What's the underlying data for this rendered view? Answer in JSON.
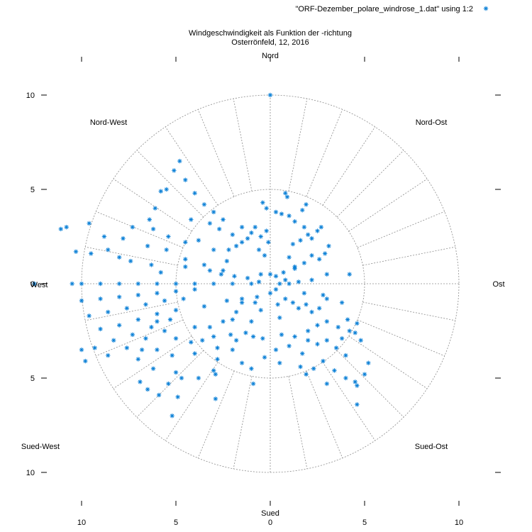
{
  "chart_data": {
    "type": "scatter",
    "projection": "polar",
    "title": "Windgeschwindigkeit als Funktion der -richtung",
    "subtitle": "Osterrönfeld, 12, 2016",
    "legend": {
      "label": "\"ORF-Dezember_polare_windrose_1.dat\" using 1:2",
      "position": "top-right",
      "marker": "*"
    },
    "colors": {
      "series": "#0a7fd6",
      "grid": "#8c8c8c",
      "border": "#000000"
    },
    "direction_labels": {
      "n": "Nord",
      "ne": "Nord-Ost",
      "e": "Ost",
      "se": "Sued-Ost",
      "s": "Sued",
      "sw": "Sued-West",
      "w": "West",
      "nw": "Nord-West"
    },
    "r_range": [
      0,
      10
    ],
    "r_grid": [
      5,
      10
    ],
    "angular_grid_step_deg": 11.25,
    "x_ticks": [
      {
        "value": -10,
        "label": "10"
      },
      {
        "value": -5,
        "label": "5"
      },
      {
        "value": 0,
        "label": "0"
      },
      {
        "value": 5,
        "label": "5"
      },
      {
        "value": 10,
        "label": "10"
      }
    ],
    "y_ticks": [
      {
        "value": 10,
        "label": "10"
      },
      {
        "value": 5,
        "label": "5"
      },
      {
        "value": 0,
        "label": "0"
      },
      {
        "value": -5,
        "label": "5"
      },
      {
        "value": -10,
        "label": "10"
      }
    ],
    "series": [
      {
        "name": "\"ORF-Dezember_polare_windrose_1.dat\" using 1:2",
        "points": [
          [
            0.0,
            10.0
          ],
          [
            0.8,
            4.8
          ],
          [
            0.9,
            4.6
          ],
          [
            -0.4,
            4.3
          ],
          [
            -0.2,
            4.0
          ],
          [
            0.3,
            3.8
          ],
          [
            0.6,
            3.7
          ],
          [
            1.0,
            3.6
          ],
          [
            1.9,
            4.2
          ],
          [
            1.7,
            3.9
          ],
          [
            1.3,
            3.3
          ],
          [
            1.8,
            3.0
          ],
          [
            2.0,
            2.6
          ],
          [
            2.2,
            2.4
          ],
          [
            1.6,
            2.3
          ],
          [
            1.2,
            2.1
          ],
          [
            2.7,
            3.0
          ],
          [
            3.1,
            2.0
          ],
          [
            2.9,
            1.6
          ],
          [
            2.6,
            1.3
          ],
          [
            1.8,
            1.1
          ],
          [
            1.3,
            0.8
          ],
          [
            0.7,
            0.6
          ],
          [
            2.2,
            1.5
          ],
          [
            1.0,
            1.4
          ],
          [
            3.0,
            0.5
          ],
          [
            2.2,
            0.2
          ],
          [
            1.5,
            0.1
          ],
          [
            0.8,
            0.2
          ],
          [
            0.3,
            0.4
          ],
          [
            -0.2,
            2.8
          ],
          [
            -0.5,
            2.5
          ],
          [
            -0.1,
            2.2
          ],
          [
            -0.6,
            1.8
          ],
          [
            -0.3,
            1.5
          ],
          [
            -1.0,
            2.7
          ],
          [
            -1.2,
            2.4
          ],
          [
            -1.5,
            2.2
          ],
          [
            -1.8,
            2.0
          ],
          [
            -2.2,
            1.8
          ],
          [
            -2.0,
            2.6
          ],
          [
            -2.7,
            2.9
          ],
          [
            -3.0,
            3.8
          ],
          [
            -3.5,
            4.2
          ],
          [
            -4.0,
            4.8
          ],
          [
            -4.5,
            5.5
          ],
          [
            -4.8,
            6.5
          ],
          [
            -5.1,
            6.0
          ],
          [
            -5.5,
            5.0
          ],
          [
            -6.1,
            4.0
          ],
          [
            -5.8,
            4.9
          ],
          [
            -6.4,
            3.4
          ],
          [
            -7.3,
            3.0
          ],
          [
            -7.8,
            2.4
          ],
          [
            -8.8,
            2.5
          ],
          [
            -9.6,
            3.2
          ],
          [
            -10.8,
            3.0
          ],
          [
            -11.1,
            2.9
          ],
          [
            -10.3,
            1.7
          ],
          [
            -9.5,
            1.6
          ],
          [
            -8.6,
            1.8
          ],
          [
            -8.0,
            1.4
          ],
          [
            -7.4,
            1.2
          ],
          [
            -6.3,
            1.0
          ],
          [
            -5.8,
            0.6
          ],
          [
            -4.5,
            0.9
          ],
          [
            -3.2,
            0.7
          ],
          [
            -2.6,
            0.5
          ],
          [
            -1.9,
            0.4
          ],
          [
            -1.2,
            0.3
          ],
          [
            -0.6,
            0.1
          ],
          [
            -10.5,
            0.0
          ],
          [
            -10.0,
            0.0
          ],
          [
            -9.0,
            0.0
          ],
          [
            -8.0,
            0.0
          ],
          [
            -7.0,
            0.0
          ],
          [
            -6.0,
            0.0
          ],
          [
            -5.0,
            0.0
          ],
          [
            -4.0,
            0.0
          ],
          [
            -3.0,
            0.0
          ],
          [
            -2.0,
            0.0
          ],
          [
            -1.0,
            0.0
          ],
          [
            -12.5,
            0.0
          ],
          [
            -10.0,
            -0.9
          ],
          [
            -9.0,
            -0.8
          ],
          [
            -8.0,
            -0.7
          ],
          [
            -7.0,
            -0.6
          ],
          [
            -6.0,
            -0.5
          ],
          [
            -5.0,
            -0.4
          ],
          [
            -4.0,
            -0.3
          ],
          [
            -9.6,
            -1.7
          ],
          [
            -8.6,
            -1.5
          ],
          [
            -7.6,
            -1.3
          ],
          [
            -6.6,
            -1.1
          ],
          [
            -5.6,
            -0.9
          ],
          [
            -4.6,
            -0.8
          ],
          [
            -9.0,
            -2.4
          ],
          [
            -8.0,
            -2.2
          ],
          [
            -7.0,
            -1.9
          ],
          [
            -6.0,
            -1.6
          ],
          [
            -5.0,
            -1.4
          ],
          [
            -9.3,
            -3.4
          ],
          [
            -8.3,
            -3.0
          ],
          [
            -7.3,
            -2.7
          ],
          [
            -6.3,
            -2.3
          ],
          [
            -5.3,
            -1.9
          ],
          [
            -10.0,
            -3.5
          ],
          [
            -9.8,
            -4.1
          ],
          [
            -8.6,
            -3.8
          ],
          [
            -7.6,
            -3.4
          ],
          [
            -6.6,
            -2.9
          ],
          [
            -5.6,
            -2.5
          ],
          [
            -7.0,
            -4.0
          ],
          [
            -6.0,
            -3.5
          ],
          [
            -5.0,
            -2.9
          ],
          [
            -4.0,
            -2.3
          ],
          [
            -6.2,
            -4.5
          ],
          [
            -5.2,
            -3.8
          ],
          [
            -4.2,
            -3.1
          ],
          [
            -3.2,
            -2.3
          ],
          [
            -5.0,
            -4.7
          ],
          [
            -4.0,
            -3.7
          ],
          [
            -3.0,
            -2.8
          ],
          [
            -2.0,
            -1.9
          ],
          [
            -4.7,
            -5.0
          ],
          [
            -5.4,
            -5.3
          ],
          [
            -6.5,
            -5.6
          ],
          [
            -6.9,
            -5.2
          ],
          [
            -5.9,
            -5.9
          ],
          [
            -4.9,
            -6.0
          ],
          [
            -3.0,
            -4.6
          ],
          [
            -2.9,
            -6.1
          ],
          [
            -2.8,
            -4.0
          ],
          [
            -1.8,
            -3.0
          ],
          [
            -1.5,
            -4.2
          ],
          [
            -1.0,
            -4.5
          ],
          [
            -0.9,
            -2.8
          ],
          [
            -0.4,
            -2.9
          ],
          [
            -0.9,
            -5.3
          ],
          [
            -0.3,
            -3.9
          ],
          [
            0.3,
            -3.5
          ],
          [
            0.5,
            -4.2
          ],
          [
            0.6,
            -2.7
          ],
          [
            1.0,
            -3.3
          ],
          [
            1.3,
            -2.8
          ],
          [
            1.7,
            -3.7
          ],
          [
            1.6,
            -4.4
          ],
          [
            1.9,
            -4.8
          ],
          [
            2.3,
            -4.5
          ],
          [
            2.8,
            -4.1
          ],
          [
            2.0,
            -3.0
          ],
          [
            2.5,
            -3.2
          ],
          [
            3.0,
            -3.0
          ],
          [
            3.5,
            -3.4
          ],
          [
            4.0,
            -3.8
          ],
          [
            3.8,
            -2.9
          ],
          [
            4.5,
            -2.6
          ],
          [
            5.2,
            -4.2
          ],
          [
            5.0,
            -4.8
          ],
          [
            4.5,
            -5.2
          ],
          [
            3.0,
            -5.3
          ],
          [
            4.6,
            -5.4
          ],
          [
            4.0,
            -5.0
          ],
          [
            3.4,
            -4.6
          ],
          [
            3.0,
            -2.0
          ],
          [
            3.6,
            -2.3
          ],
          [
            4.2,
            -2.5
          ],
          [
            2.5,
            -2.2
          ],
          [
            2.0,
            -2.5
          ],
          [
            2.2,
            -1.5
          ],
          [
            1.5,
            -1.3
          ],
          [
            1.9,
            -1.1
          ],
          [
            2.6,
            -1.3
          ],
          [
            3.0,
            -0.8
          ],
          [
            0.8,
            -0.8
          ],
          [
            1.2,
            -1.0
          ],
          [
            0.5,
            -1.8
          ],
          [
            4.2,
            0.5
          ],
          [
            2.8,
            -0.6
          ],
          [
            3.8,
            -1.0
          ],
          [
            4.1,
            -1.9
          ],
          [
            4.6,
            -2.1
          ],
          [
            4.8,
            -3.0
          ],
          [
            1.8,
            -0.5
          ],
          [
            1.0,
            0.0
          ],
          [
            0.5,
            0.0
          ],
          [
            0.0,
            0.5
          ],
          [
            0.0,
            -0.5
          ],
          [
            -0.5,
            0.5
          ],
          [
            0.3,
            -0.3
          ],
          [
            4.6,
            -6.4
          ],
          [
            1.3,
            0.9
          ],
          [
            2.5,
            2.8
          ],
          [
            -0.8,
            -1.0
          ],
          [
            -1.8,
            -1.5
          ],
          [
            -2.5,
            -2.0
          ],
          [
            -1.5,
            -0.8
          ],
          [
            -2.3,
            -0.9
          ],
          [
            -3.5,
            -1.2
          ],
          [
            -1.0,
            -2.0
          ],
          [
            -1.5,
            -1.0
          ],
          [
            -0.7,
            -0.7
          ],
          [
            -2.5,
            0.7
          ],
          [
            -3.5,
            1.0
          ],
          [
            -4.5,
            1.3
          ],
          [
            -3.8,
            2.3
          ],
          [
            -3.0,
            1.8
          ],
          [
            -2.3,
            1.2
          ],
          [
            -5.5,
            1.8
          ],
          [
            -6.5,
            2.0
          ],
          [
            -4.5,
            2.2
          ],
          [
            -5.4,
            2.5
          ],
          [
            -6.2,
            2.9
          ],
          [
            -3.2,
            3.2
          ],
          [
            -4.2,
            3.4
          ],
          [
            -2.5,
            3.4
          ],
          [
            -1.5,
            3.0
          ],
          [
            -0.8,
            3.0
          ],
          [
            -6.0,
            -2.0
          ],
          [
            -6.8,
            -3.5
          ],
          [
            -3.8,
            -5.0
          ],
          [
            -5.2,
            -7.0
          ],
          [
            -2.9,
            -4.8
          ],
          [
            -2.0,
            -3.5
          ],
          [
            -3.6,
            -3.0
          ],
          [
            -1.3,
            -2.6
          ],
          [
            -2.1,
            -2.7
          ],
          [
            -2.8,
            -3.4
          ],
          [
            -0.5,
            -1.4
          ],
          [
            0.4,
            -1.1
          ]
        ]
      }
    ]
  }
}
